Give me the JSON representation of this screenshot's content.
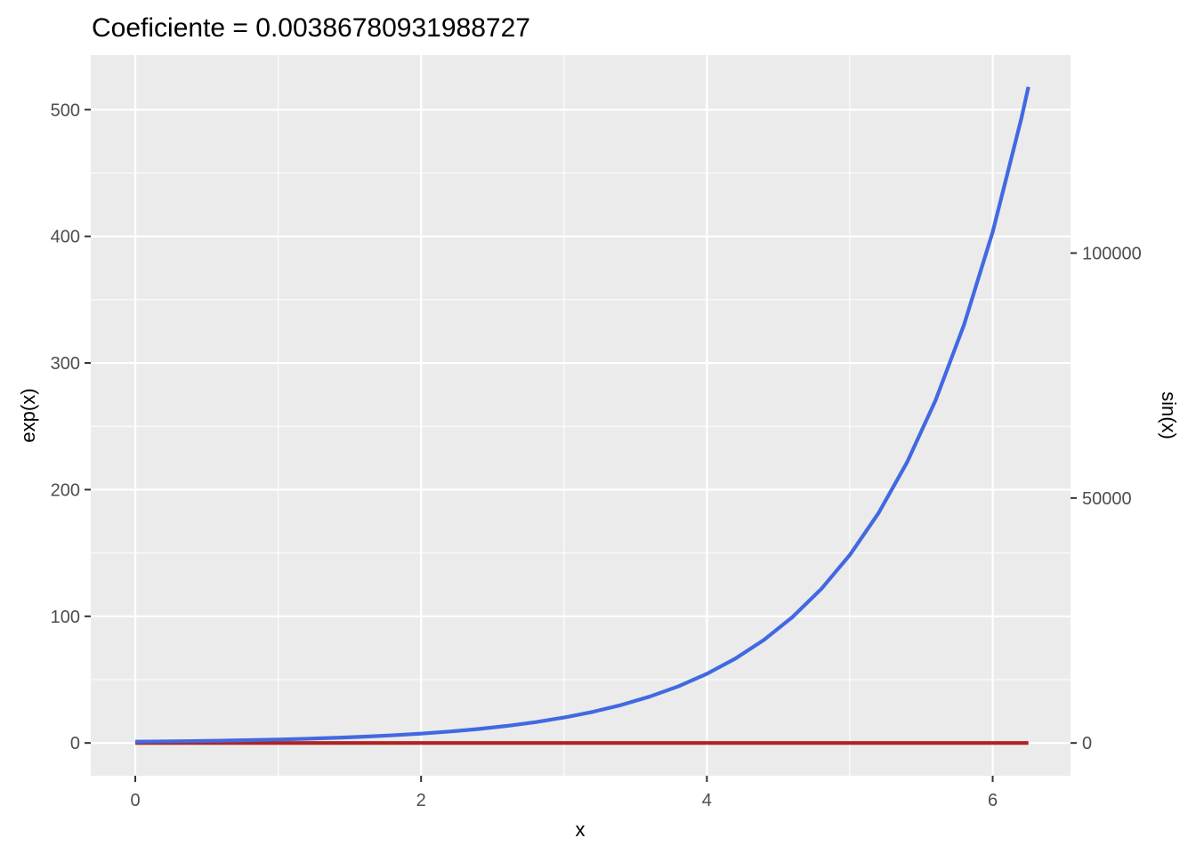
{
  "chart_data": {
    "type": "line",
    "title": "Coeficiente =  0.00386780931988727",
    "xlabel": "x",
    "ylabel": "exp(x)",
    "y2label": "sin(x)",
    "xlim": [
      -0.3116,
      6.5448
    ],
    "ylim": [
      -25.86,
      543.06
    ],
    "x_ticks": [
      0,
      2,
      4,
      6
    ],
    "x_tick_labels": [
      "0",
      "2",
      "4",
      "6"
    ],
    "x_minor_ticks": [
      1,
      3,
      5
    ],
    "y_ticks": [
      0,
      100,
      200,
      300,
      400,
      500
    ],
    "y_tick_labels": [
      "0",
      "100",
      "200",
      "300",
      "400",
      "500"
    ],
    "y_minor_ticks": [
      50,
      150,
      250,
      350,
      450
    ],
    "y2_ticks": [
      0,
      50000,
      100000
    ],
    "y2_tick_labels": [
      "0",
      "50000",
      "100000"
    ],
    "y2_coefficient": 0.00386780931988727,
    "grid": true,
    "x": [
      0,
      0.2,
      0.4,
      0.6,
      0.8,
      1.0,
      1.2,
      1.4,
      1.6,
      1.8,
      2.0,
      2.2,
      2.4,
      2.6,
      2.8,
      3.0,
      3.2,
      3.4,
      3.6,
      3.8,
      4.0,
      4.2,
      4.4,
      4.6,
      4.8,
      5.0,
      5.2,
      5.4,
      5.6,
      5.8,
      6.0,
      6.2,
      6.25
    ],
    "series": [
      {
        "name": "exp(x)",
        "color": "#4169e1",
        "values": [
          1.0,
          1.22,
          1.49,
          1.82,
          2.23,
          2.72,
          3.32,
          4.06,
          4.95,
          6.05,
          7.39,
          9.03,
          11.02,
          13.46,
          16.44,
          20.09,
          24.53,
          29.96,
          36.6,
          44.7,
          54.6,
          66.69,
          81.45,
          99.48,
          121.51,
          148.41,
          181.27,
          221.41,
          270.43,
          330.3,
          403.43,
          492.75,
          518.01
        ]
      },
      {
        "name": "sin(x)",
        "color": "#b22222",
        "values": [
          0.0,
          0.2,
          0.39,
          0.56,
          0.72,
          0.84,
          0.93,
          0.99,
          1.0,
          0.97,
          0.91,
          0.81,
          0.68,
          0.52,
          0.33,
          0.14,
          -0.06,
          -0.26,
          -0.44,
          -0.61,
          -0.76,
          -0.87,
          -0.95,
          -0.99,
          -1.0,
          -0.96,
          -0.88,
          -0.77,
          -0.63,
          -0.46,
          -0.28,
          -0.08,
          -0.03
        ]
      }
    ],
    "colors": {
      "panel_background": "#ebebeb",
      "grid": "#ffffff",
      "tick": "#333333",
      "tick_label": "#4d4d4d"
    }
  }
}
